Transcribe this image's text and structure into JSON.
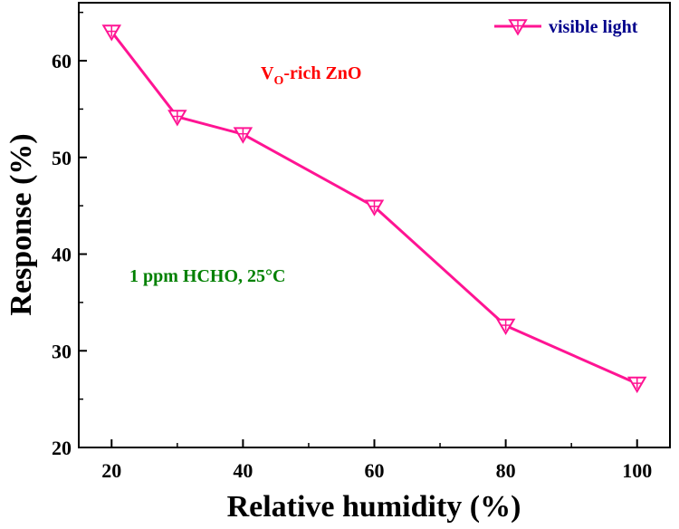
{
  "chart_data": {
    "type": "line",
    "title": "",
    "xlabel": "Relative humidity (%)",
    "ylabel": "Response (%)",
    "xlim": [
      15,
      105
    ],
    "ylim": [
      20,
      66
    ],
    "x_ticks": [
      20,
      40,
      60,
      80,
      100
    ],
    "y_ticks": [
      20,
      30,
      40,
      50,
      60
    ],
    "grid": false,
    "legend_position": "top-right",
    "series": [
      {
        "name": "visible light",
        "color": "#ff1493",
        "marker": "down-triangle-cross",
        "x": [
          20,
          30,
          40,
          60,
          80,
          100
        ],
        "y": [
          63.0,
          54.2,
          52.4,
          44.9,
          32.6,
          26.6
        ]
      }
    ],
    "annotations": {
      "material_main": "V",
      "material_sub": "O",
      "material_rest": "-rich ZnO",
      "material_color": "#ff0000",
      "condition": "1 ppm HCHO, 25°C",
      "condition_color": "#008000"
    },
    "legend_text_color": "#00008b"
  }
}
